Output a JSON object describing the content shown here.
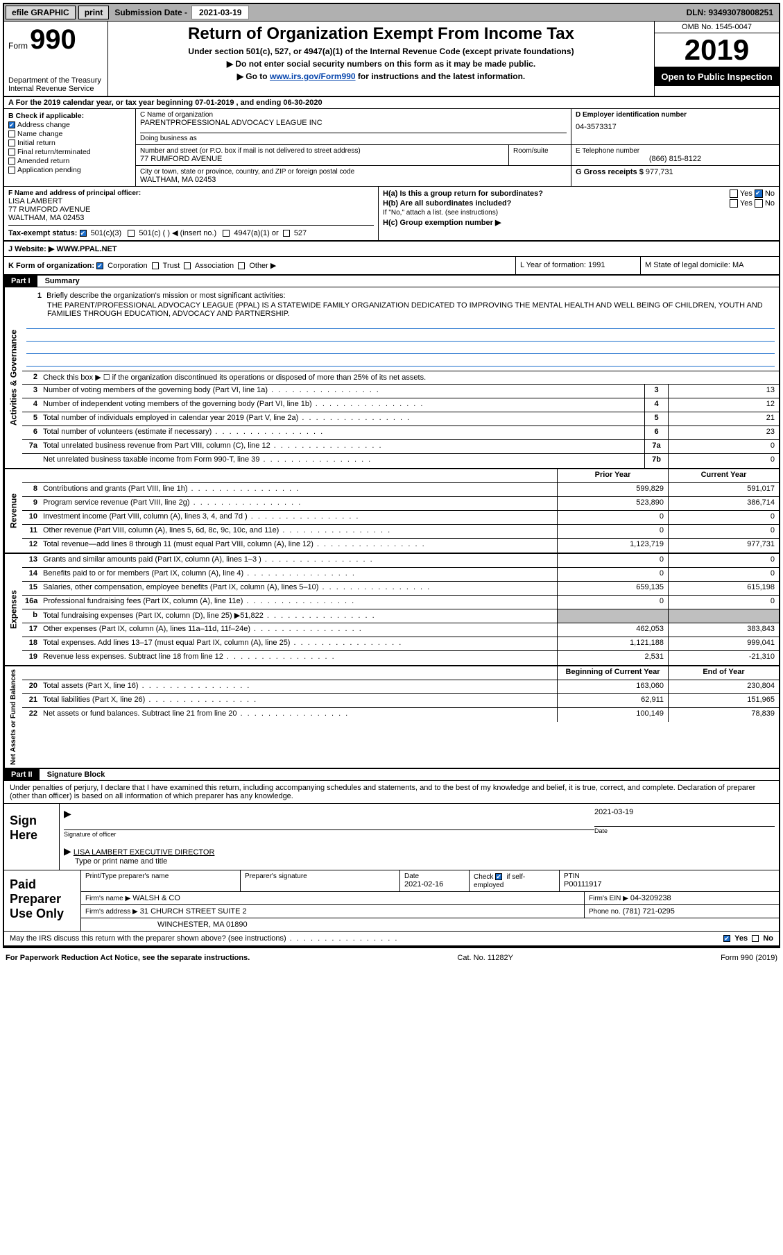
{
  "topbar": {
    "efile": "efile GRAPHIC",
    "print": "print",
    "subdate_label": "Submission Date - ",
    "subdate": "2021-03-19",
    "dln": "DLN: 93493078008251"
  },
  "header": {
    "form_word": "Form",
    "form_num": "990",
    "dept": "Department of the Treasury\nInternal Revenue Service",
    "title": "Return of Organization Exempt From Income Tax",
    "subtitle": "Under section 501(c), 527, or 4947(a)(1) of the Internal Revenue Code (except private foundations)",
    "line1": "▶ Do not enter social security numbers on this form as it may be made public.",
    "line2_pre": "▶ Go to ",
    "line2_link": "www.irs.gov/Form990",
    "line2_post": " for instructions and the latest information.",
    "omb": "OMB No. 1545-0047",
    "year": "2019",
    "openpub": "Open to Public Inspection"
  },
  "rowA": "A For the 2019 calendar year, or tax year beginning 07-01-2019    , and ending 06-30-2020",
  "boxB": {
    "header": "B Check if applicable:",
    "items": [
      {
        "label": "Address change",
        "checked": true
      },
      {
        "label": "Name change",
        "checked": false
      },
      {
        "label": "Initial return",
        "checked": false
      },
      {
        "label": "Final return/terminated",
        "checked": false
      },
      {
        "label": "Amended return",
        "checked": false
      },
      {
        "label": "Application pending",
        "checked": false
      }
    ]
  },
  "boxC": {
    "name_label": "C Name of organization",
    "name": "PARENTPROFESSIONAL ADVOCACY LEAGUE INC",
    "dba_label": "Doing business as",
    "dba": "",
    "street_label": "Number and street (or P.O. box if mail is not delivered to street address)",
    "room_label": "Room/suite",
    "street": "77 RUMFORD AVENUE",
    "city_label": "City or town, state or province, country, and ZIP or foreign postal code",
    "city": "WALTHAM, MA  02453"
  },
  "boxD": {
    "label": "D Employer identification number",
    "val": "04-3573317"
  },
  "boxE": {
    "label": "E Telephone number",
    "val": "(866) 815-8122"
  },
  "boxG": {
    "label": "G Gross receipts $ ",
    "val": "977,731"
  },
  "boxF": {
    "label": "F  Name and address of principal officer:",
    "name": "LISA LAMBERT",
    "addr1": "77 RUMFORD AVENUE",
    "addr2": "WALTHAM, MA  02453"
  },
  "boxH": {
    "a": "H(a)  Is this a group return for subordinates?",
    "a_yes": "Yes",
    "a_no": "No",
    "b": "H(b)  Are all subordinates included?",
    "b_note": "If \"No,\" attach a list. (see instructions)",
    "c": "H(c)  Group exemption number ▶"
  },
  "rowI": {
    "label": "Tax-exempt status:",
    "opts": [
      "501(c)(3)",
      "501(c) (  ) ◀ (insert no.)",
      "4947(a)(1) or",
      "527"
    ]
  },
  "rowJ": {
    "label": "J   Website: ▶",
    "val": "WWW.PPAL.NET"
  },
  "rowK": {
    "label": "K Form of organization:",
    "opts": [
      "Corporation",
      "Trust",
      "Association",
      "Other ▶"
    ],
    "L": "L Year of formation: 1991",
    "M": "M State of legal domicile: MA"
  },
  "part1": {
    "hdr": "Part I",
    "title": "Summary"
  },
  "actgov": {
    "side": "Activities & Governance",
    "l1_label": "Briefly describe the organization's mission or most significant activities:",
    "l1_text": "THE PARENT/PROFESSIONAL ADVOCACY LEAGUE (PPAL) IS A STATEWIDE FAMILY ORGANIZATION DEDICATED TO IMPROVING THE MENTAL HEALTH AND WELL BEING OF CHILDREN, YOUTH AND FAMILIES THROUGH EDUCATION, ADVOCACY AND PARTNERSHIP.",
    "l2": "Check this box ▶ ☐  if the organization discontinued its operations or disposed of more than 25% of its net assets.",
    "rows": [
      {
        "n": "3",
        "d": "Number of voting members of the governing body (Part VI, line 1a)",
        "box": "3",
        "v": "13"
      },
      {
        "n": "4",
        "d": "Number of independent voting members of the governing body (Part VI, line 1b)",
        "box": "4",
        "v": "12"
      },
      {
        "n": "5",
        "d": "Total number of individuals employed in calendar year 2019 (Part V, line 2a)",
        "box": "5",
        "v": "21"
      },
      {
        "n": "6",
        "d": "Total number of volunteers (estimate if necessary)",
        "box": "6",
        "v": "23"
      },
      {
        "n": "7a",
        "d": "Total unrelated business revenue from Part VIII, column (C), line 12",
        "box": "7a",
        "v": "0"
      },
      {
        "n": "",
        "d": "Net unrelated business taxable income from Form 990-T, line 39",
        "box": "7b",
        "v": "0"
      }
    ]
  },
  "twocol_hdr": {
    "py": "Prior Year",
    "cy": "Current Year"
  },
  "revenue": {
    "side": "Revenue",
    "rows": [
      {
        "n": "8",
        "d": "Contributions and grants (Part VIII, line 1h)",
        "py": "599,829",
        "cy": "591,017"
      },
      {
        "n": "9",
        "d": "Program service revenue (Part VIII, line 2g)",
        "py": "523,890",
        "cy": "386,714"
      },
      {
        "n": "10",
        "d": "Investment income (Part VIII, column (A), lines 3, 4, and 7d )",
        "py": "0",
        "cy": "0"
      },
      {
        "n": "11",
        "d": "Other revenue (Part VIII, column (A), lines 5, 6d, 8c, 9c, 10c, and 11e)",
        "py": "0",
        "cy": "0"
      },
      {
        "n": "12",
        "d": "Total revenue—add lines 8 through 11 (must equal Part VIII, column (A), line 12)",
        "py": "1,123,719",
        "cy": "977,731"
      }
    ]
  },
  "expenses": {
    "side": "Expenses",
    "rows": [
      {
        "n": "13",
        "d": "Grants and similar amounts paid (Part IX, column (A), lines 1–3 )",
        "py": "0",
        "cy": "0"
      },
      {
        "n": "14",
        "d": "Benefits paid to or for members (Part IX, column (A), line 4)",
        "py": "0",
        "cy": "0"
      },
      {
        "n": "15",
        "d": "Salaries, other compensation, employee benefits (Part IX, column (A), lines 5–10)",
        "py": "659,135",
        "cy": "615,198"
      },
      {
        "n": "16a",
        "d": "Professional fundraising fees (Part IX, column (A), line 11e)",
        "py": "0",
        "cy": "0"
      },
      {
        "n": "b",
        "d": "Total fundraising expenses (Part IX, column (D), line 25) ▶51,822",
        "py": "SHADE",
        "cy": "SHADE"
      },
      {
        "n": "17",
        "d": "Other expenses (Part IX, column (A), lines 11a–11d, 11f–24e)",
        "py": "462,053",
        "cy": "383,843"
      },
      {
        "n": "18",
        "d": "Total expenses. Add lines 13–17 (must equal Part IX, column (A), line 25)",
        "py": "1,121,188",
        "cy": "999,041"
      },
      {
        "n": "19",
        "d": "Revenue less expenses. Subtract line 18 from line 12",
        "py": "2,531",
        "cy": "-21,310"
      }
    ]
  },
  "netassets": {
    "side": "Net Assets or Fund Balances",
    "hdr_py": "Beginning of Current Year",
    "hdr_cy": "End of Year",
    "rows": [
      {
        "n": "20",
        "d": "Total assets (Part X, line 16)",
        "py": "163,060",
        "cy": "230,804"
      },
      {
        "n": "21",
        "d": "Total liabilities (Part X, line 26)",
        "py": "62,911",
        "cy": "151,965"
      },
      {
        "n": "22",
        "d": "Net assets or fund balances. Subtract line 21 from line 20",
        "py": "100,149",
        "cy": "78,839"
      }
    ]
  },
  "part2": {
    "hdr": "Part II",
    "title": "Signature Block"
  },
  "sig": {
    "decl": "Under penalties of perjury, I declare that I have examined this return, including accompanying schedules and statements, and to the best of my knowledge and belief, it is true, correct, and complete. Declaration of preparer (other than officer) is based on all information of which preparer has any knowledge.",
    "signhere": "Sign Here",
    "sig_label": "Signature of officer",
    "date_label": "Date",
    "date": "2021-03-19",
    "typed": "LISA LAMBERT EXECUTIVE DIRECTOR",
    "typed_label": "Type or print name and title"
  },
  "prep": {
    "label": "Paid Preparer Use Only",
    "h1": "Print/Type preparer's name",
    "h2": "Preparer's signature",
    "h3": "Date",
    "h3v": "2021-02-16",
    "h4a": "Check",
    "h4b": "if self-employed",
    "h5": "PTIN",
    "h5v": "P00111917",
    "firm_label": "Firm's name    ▶",
    "firm": "WALSH & CO",
    "ein_label": "Firm's EIN ▶",
    "ein": "04-3209238",
    "addr_label": "Firm's address ▶",
    "addr1": "31 CHURCH STREET SUITE 2",
    "addr2": "WINCHESTER, MA  01890",
    "phone_label": "Phone no.",
    "phone": "(781) 721-0295"
  },
  "discuss": {
    "q": "May the IRS discuss this return with the preparer shown above? (see instructions)",
    "yes": "Yes",
    "no": "No"
  },
  "footer": {
    "l": "For Paperwork Reduction Act Notice, see the separate instructions.",
    "m": "Cat. No. 11282Y",
    "r": "Form 990 (2019)"
  }
}
